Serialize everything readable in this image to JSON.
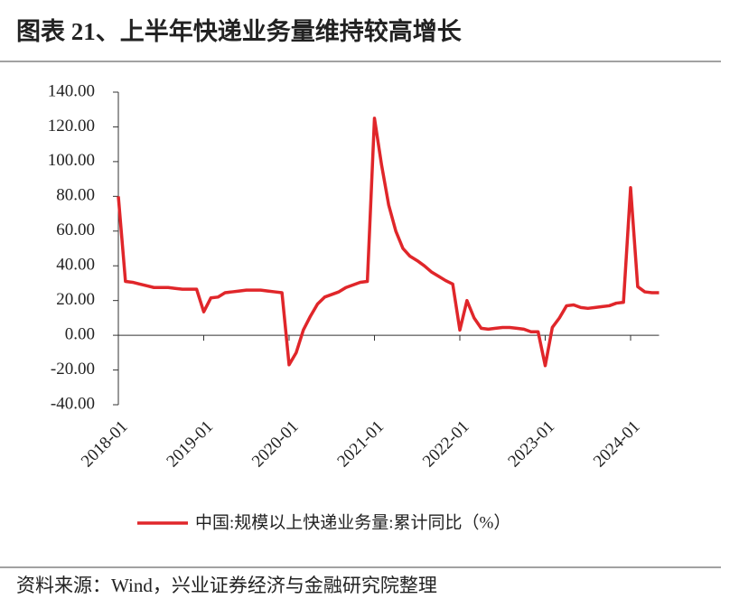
{
  "chart_data": {
    "type": "line",
    "title": "图表 21、上半年快递业务量维持较高增长",
    "source": "资料来源：Wind，兴业证券经济与金融研究院整理",
    "categories": [
      "2018-01",
      null,
      null,
      null,
      null,
      null,
      null,
      null,
      null,
      null,
      null,
      null,
      "2019-01",
      null,
      null,
      null,
      null,
      null,
      null,
      null,
      null,
      null,
      null,
      null,
      "2020-01",
      null,
      null,
      null,
      null,
      null,
      null,
      null,
      null,
      null,
      null,
      null,
      "2021-01",
      null,
      null,
      null,
      null,
      null,
      null,
      null,
      null,
      null,
      null,
      null,
      "2022-01",
      null,
      null,
      null,
      null,
      null,
      null,
      null,
      null,
      null,
      null,
      null,
      "2023-01",
      null,
      null,
      null,
      null,
      null,
      null,
      null,
      null,
      null,
      null,
      null,
      "2024-01",
      null,
      null,
      null,
      null
    ],
    "series": [
      {
        "name": "中国:规模以上快递业务量:累计同比（%）",
        "color": "#e0262a",
        "values": [
          80,
          31,
          30.5,
          29.5,
          28.5,
          27.5,
          27.5,
          27.5,
          27,
          26.5,
          26.5,
          26.5,
          13.5,
          21.5,
          22,
          24.5,
          25,
          25.5,
          26,
          26,
          26,
          25.5,
          25,
          24.5,
          -17,
          -10,
          3,
          11,
          18,
          22,
          23.5,
          25,
          27.5,
          29,
          30.5,
          31,
          125,
          98,
          75,
          60,
          50,
          45.5,
          43,
          40,
          36.5,
          34,
          31.5,
          29.5,
          3,
          20,
          10,
          4,
          3.5,
          4,
          4.5,
          4.5,
          4,
          3.5,
          2,
          2,
          -17.5,
          4.5,
          10,
          17,
          17.5,
          16,
          15.5,
          16,
          16.5,
          17,
          18.5,
          19,
          85,
          28,
          25,
          24.5,
          24.5
        ]
      }
    ],
    "ylim": [
      -40,
      140
    ],
    "yticks": [
      {
        "value": -40,
        "label": "-40.00"
      },
      {
        "value": -20,
        "label": "-20.00"
      },
      {
        "value": 0,
        "label": "0.00"
      },
      {
        "value": 20,
        "label": "20.00"
      },
      {
        "value": 40,
        "label": "40.00"
      },
      {
        "value": 60,
        "label": "60.00"
      },
      {
        "value": 80,
        "label": "80.00"
      },
      {
        "value": 100,
        "label": "100.00"
      },
      {
        "value": 120,
        "label": "120.00"
      },
      {
        "value": 140,
        "label": "140.00"
      }
    ],
    "legend": "bottom"
  }
}
